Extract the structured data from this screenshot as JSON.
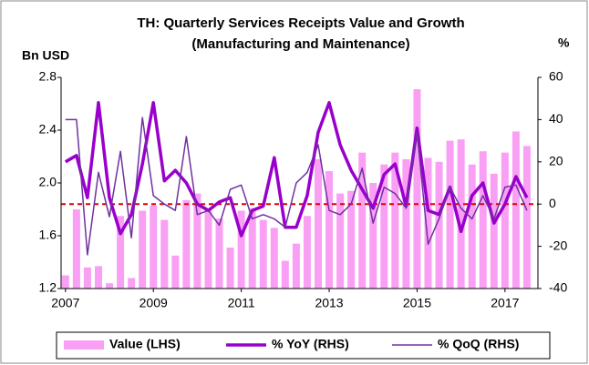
{
  "chart_data": {
    "type": "bar-line",
    "title": "TH: Quarterly Services Receipts Value and Growth",
    "subtitle": "(Manufacturing and Maintenance)",
    "y_label": "Bn USD",
    "y2_label": "%",
    "x": [
      2007,
      2007.25,
      2007.5,
      2007.75,
      2008,
      2008.25,
      2008.5,
      2008.75,
      2009,
      2009.25,
      2009.5,
      2009.75,
      2010,
      2010.25,
      2010.5,
      2010.75,
      2011,
      2011.25,
      2011.5,
      2011.75,
      2012,
      2012.25,
      2012.5,
      2012.75,
      2013,
      2013.25,
      2013.5,
      2013.75,
      2014,
      2014.25,
      2014.5,
      2014.75,
      2015,
      2015.25,
      2015.5,
      2015.75,
      2016,
      2016.25,
      2016.5,
      2016.75,
      2017,
      2017.25,
      2017.5
    ],
    "xlim": [
      2006.9,
      2017.75
    ],
    "xticks": [
      2007,
      2009,
      2011,
      2013,
      2015,
      2017
    ],
    "ylim": [
      1.2,
      2.8
    ],
    "yticks": [
      {
        "value": 1.2,
        "label": "1.2"
      },
      1.6,
      {
        "value": 2.0,
        "label": "2.0"
      },
      2.4,
      2.8
    ],
    "y2lim": [
      -40,
      60
    ],
    "y2ticks": [
      -40,
      -20,
      0,
      20,
      40,
      60
    ],
    "y2_reference": 0,
    "reference_color": "#e00000",
    "series": [
      {
        "name": "Value (LHS)",
        "kind": "bar",
        "color": "#f9a0f4",
        "values": [
          1.3,
          1.8,
          1.36,
          1.37,
          1.24,
          1.75,
          1.28,
          1.79,
          1.83,
          1.72,
          1.45,
          1.87,
          1.92,
          1.79,
          1.73,
          1.51,
          1.79,
          1.81,
          1.72,
          1.66,
          1.41,
          1.54,
          1.75,
          2.18,
          2.09,
          1.92,
          1.94,
          2.23,
          2.0,
          2.14,
          2.23,
          2.18,
          2.71,
          2.19,
          2.16,
          2.32,
          2.33,
          2.14,
          2.24,
          2.07,
          2.23,
          2.39,
          2.28
        ]
      },
      {
        "name": "% YoY (RHS)",
        "kind": "line",
        "axis": "y2",
        "color": "#9900cc",
        "width": 3.5,
        "values": [
          20,
          23,
          3,
          48,
          3,
          -14,
          -5,
          19,
          48,
          11,
          16,
          10,
          0,
          -3,
          1,
          3,
          -15,
          -3,
          -1,
          22,
          -11,
          -11,
          4,
          34,
          48,
          28,
          16,
          7,
          -2,
          14,
          19,
          -1,
          36,
          -3,
          -5,
          8,
          -13,
          4,
          10,
          -9,
          0,
          13,
          3
        ]
      },
      {
        "name": "% QoQ (RHS)",
        "kind": "line",
        "axis": "y2",
        "color": "#7030a0",
        "width": 1.5,
        "values": [
          40,
          40,
          -24,
          15,
          -6,
          25,
          -16,
          41,
          4,
          0,
          -3,
          32,
          -5,
          -3,
          -10,
          7,
          9,
          -7,
          -5,
          -7,
          -11,
          10,
          15,
          28,
          -3,
          -5,
          0,
          17,
          -9,
          8,
          5,
          -2,
          34,
          -19,
          -7,
          8,
          -2,
          -7,
          4,
          -7,
          8,
          9,
          -3
        ]
      }
    ]
  }
}
